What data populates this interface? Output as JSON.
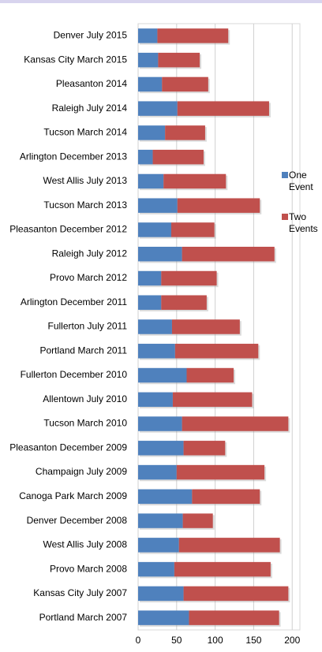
{
  "chart_data": {
    "type": "stacked_bar_horizontal",
    "categories": [
      "Denver July 2015",
      "Kansas City March 2015",
      "Pleasanton 2014",
      "Raleigh July 2014",
      "Tucson March 2014",
      "Arlington December 2013",
      "West Allis July 2013",
      "Tucson March 2013",
      "Pleasanton December 2012",
      "Raleigh July 2012",
      "Provo March 2012",
      "Arlington December 2011",
      "Fullerton July 2011",
      "Portland March 2011",
      "Fullerton December 2010",
      "Allentown July 2010",
      "Tucson March 2010",
      "Pleasanton December 2009",
      "Champaign July 2009",
      "Canoga Park March 2009",
      "Denver December 2008",
      "West Allis July 2008",
      "Provo March 2008",
      "Kansas City July 2007",
      "Portland March 2007"
    ],
    "series": [
      {
        "name": "One Event",
        "color": "#4f81bd",
        "values": [
          25,
          26,
          31,
          51,
          35,
          19,
          33,
          51,
          43,
          57,
          30,
          30,
          44,
          48,
          63,
          45,
          57,
          59,
          50,
          70,
          58,
          53,
          47,
          59,
          66
        ]
      },
      {
        "name": "Two Events",
        "color": "#c0504d",
        "values": [
          92,
          54,
          60,
          119,
          52,
          66,
          81,
          107,
          56,
          120,
          72,
          59,
          88,
          108,
          61,
          103,
          138,
          54,
          114,
          88,
          39,
          131,
          125,
          136,
          117
        ]
      }
    ],
    "xlim": [
      0,
      210
    ],
    "xticks": [
      0,
      50,
      100,
      150,
      200
    ],
    "grid": true,
    "legend": "right"
  }
}
